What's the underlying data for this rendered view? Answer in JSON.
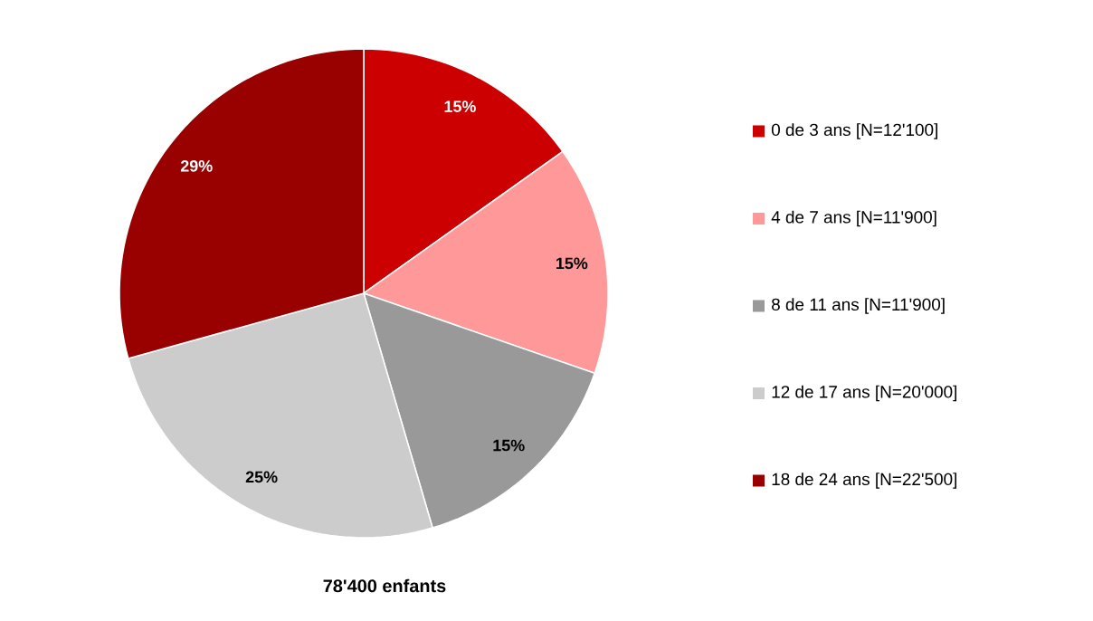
{
  "chart_data": {
    "type": "pie",
    "title": "78'400 enfants",
    "categories": [
      "0 de 3 ans [N=12'100]",
      "4 de 7 ans [N=11'900]",
      "8 de 11 ans [N=11'900]",
      "12 de 17 ans [N=20'000]",
      "18 de 24 ans [N=22'500]"
    ],
    "values": [
      15,
      15,
      15,
      25,
      29
    ],
    "value_labels": [
      "15%",
      "15%",
      "15%",
      "25%",
      "29%"
    ],
    "colors": [
      "#cc0000",
      "#ff9999",
      "#999999",
      "#cccccc",
      "#990000"
    ],
    "legend": "right"
  }
}
